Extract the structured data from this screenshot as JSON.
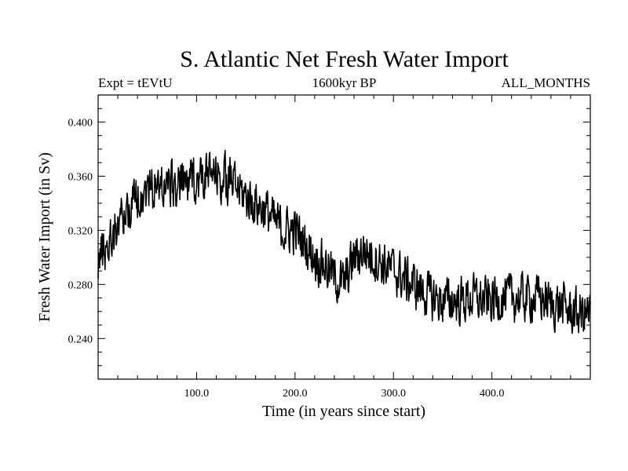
{
  "chart_data": {
    "type": "line",
    "title": "S. Atlantic Net Fresh Water Import",
    "subtitle_left": "Expt = tEVtU",
    "subtitle_center": "1600kyr BP",
    "subtitle_right": "ALL_MONTHS",
    "xlabel": "Time (in years since start)",
    "ylabel": "Fresh Water Import (in Sv)",
    "xlim": [
      0,
      500
    ],
    "ylim": [
      0.21,
      0.42
    ],
    "xticks": [
      100,
      200,
      300,
      400
    ],
    "xtick_labels": [
      "100.0",
      "200.0",
      "300.0",
      "400.0"
    ],
    "yticks": [
      0.24,
      0.28,
      0.32,
      0.36,
      0.4
    ],
    "ytick_labels": [
      "0.240",
      "0.280",
      "0.320",
      "0.360",
      "0.400"
    ],
    "series": [
      {
        "name": "fresh water import",
        "x": [
          0,
          10,
          20,
          30,
          40,
          50,
          60,
          70,
          80,
          90,
          100,
          110,
          120,
          130,
          140,
          150,
          160,
          170,
          180,
          190,
          200,
          210,
          220,
          230,
          240,
          250,
          260,
          270,
          280,
          290,
          300,
          310,
          320,
          330,
          340,
          350,
          360,
          370,
          380,
          390,
          400,
          410,
          420,
          430,
          440,
          450,
          460,
          470,
          480,
          490,
          500
        ],
        "values": [
          0.3,
          0.31,
          0.325,
          0.335,
          0.345,
          0.35,
          0.352,
          0.355,
          0.352,
          0.355,
          0.358,
          0.36,
          0.36,
          0.358,
          0.352,
          0.345,
          0.34,
          0.335,
          0.325,
          0.32,
          0.32,
          0.31,
          0.3,
          0.295,
          0.285,
          0.28,
          0.3,
          0.305,
          0.3,
          0.295,
          0.29,
          0.285,
          0.28,
          0.275,
          0.27,
          0.268,
          0.268,
          0.268,
          0.27,
          0.268,
          0.268,
          0.27,
          0.27,
          0.27,
          0.27,
          0.27,
          0.265,
          0.265,
          0.26,
          0.258,
          0.258
        ]
      }
    ]
  }
}
